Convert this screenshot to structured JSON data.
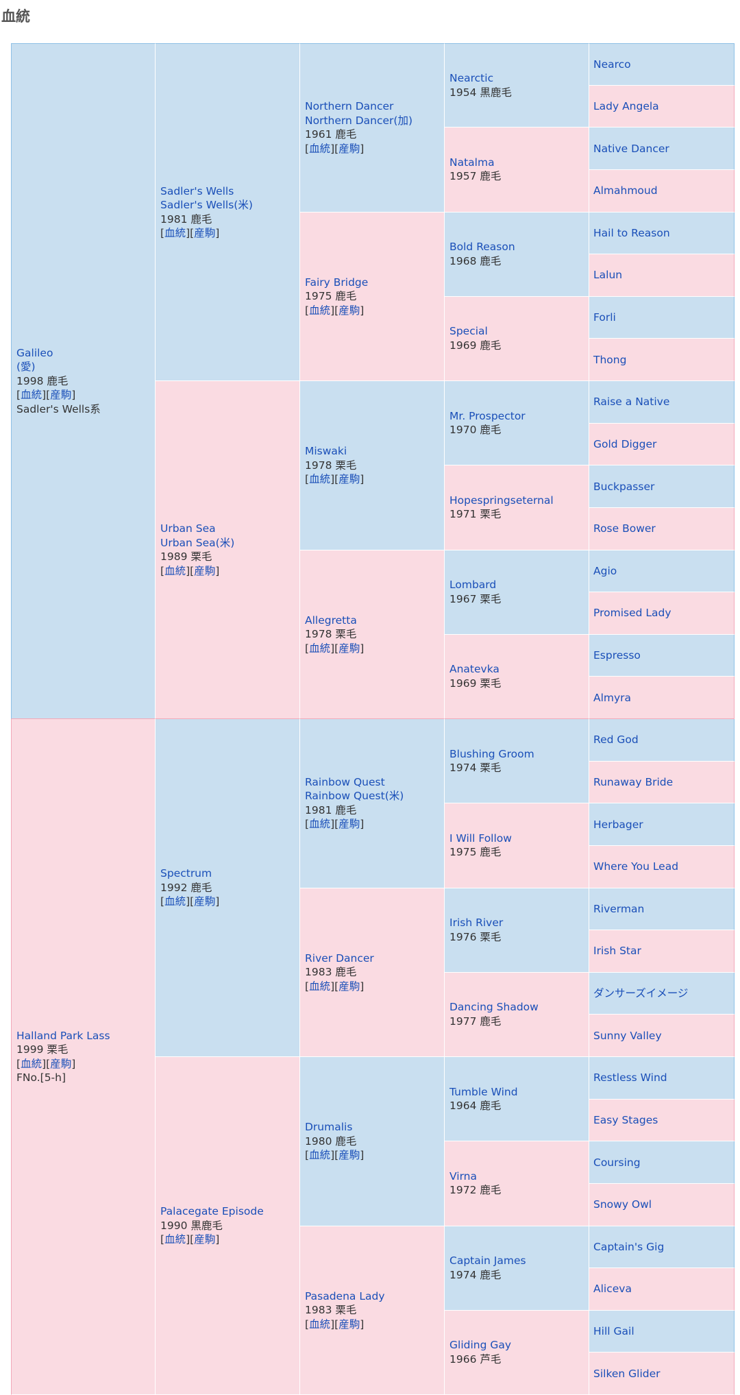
{
  "title": "血統",
  "link_labels": {
    "pedigree": "血統",
    "progeny": "産駒"
  },
  "horse": {
    "sire": {
      "name": "Galileo",
      "alt": "(愛)",
      "info": "1998 鹿毛",
      "line": "Sadler's Wells系"
    },
    "dam": {
      "name": "Halland Park Lass",
      "info": "1999 栗毛",
      "line": "FNo.[5-h]"
    }
  },
  "gen2": [
    {
      "name": "Sadler's Wells",
      "alt": "Sadler's Wells(米)",
      "info": "1981 鹿毛"
    },
    {
      "name": "Urban Sea",
      "alt": "Urban Sea(米)",
      "info": "1989 栗毛"
    },
    {
      "name": "Spectrum",
      "info": "1992 鹿毛"
    },
    {
      "name": "Palacegate Episode",
      "info": "1990 黒鹿毛"
    }
  ],
  "gen3": [
    {
      "name": "Northern Dancer",
      "alt": "Northern Dancer(加)",
      "info": "1961 鹿毛"
    },
    {
      "name": "Fairy Bridge",
      "info": "1975 鹿毛"
    },
    {
      "name": "Miswaki",
      "info": "1978 栗毛"
    },
    {
      "name": "Allegretta",
      "info": "1978 栗毛"
    },
    {
      "name": "Rainbow Quest",
      "alt": "Rainbow Quest(米)",
      "info": "1981 鹿毛"
    },
    {
      "name": "River Dancer",
      "info": "1983 鹿毛"
    },
    {
      "name": "Drumalis",
      "info": "1980 鹿毛"
    },
    {
      "name": "Pasadena Lady",
      "info": "1983 栗毛"
    }
  ],
  "gen4": [
    {
      "name": "Nearctic",
      "info": "1954 黒鹿毛"
    },
    {
      "name": "Natalma",
      "info": "1957 鹿毛"
    },
    {
      "name": "Bold Reason",
      "info": "1968 鹿毛"
    },
    {
      "name": "Special",
      "info": "1969 鹿毛"
    },
    {
      "name": "Mr. Prospector",
      "info": "1970 鹿毛"
    },
    {
      "name": "Hopespringseternal",
      "info": "1971 栗毛"
    },
    {
      "name": "Lombard",
      "info": "1967 栗毛"
    },
    {
      "name": "Anatevka",
      "info": "1969 栗毛"
    },
    {
      "name": "Blushing Groom",
      "info": "1974 栗毛"
    },
    {
      "name": "I Will Follow",
      "info": "1975 鹿毛"
    },
    {
      "name": "Irish River",
      "info": "1976 栗毛"
    },
    {
      "name": "Dancing Shadow",
      "info": "1977 鹿毛"
    },
    {
      "name": "Tumble Wind",
      "info": "1964 鹿毛"
    },
    {
      "name": "Virna",
      "info": "1972 鹿毛"
    },
    {
      "name": "Captain James",
      "info": "1974 鹿毛"
    },
    {
      "name": "Gliding Gay",
      "info": "1966 芦毛"
    }
  ],
  "gen5": [
    "Nearco",
    "Lady Angela",
    "Native Dancer",
    "Almahmoud",
    "Hail to Reason",
    "Lalun",
    "Forli",
    "Thong",
    "Raise a Native",
    "Gold Digger",
    "Buckpasser",
    "Rose Bower",
    "Agio",
    "Promised Lady",
    "Espresso",
    "Almyra",
    "Red God",
    "Runaway Bride",
    "Herbager",
    "Where You Lead",
    "Riverman",
    "Irish Star",
    "ダンサーズイメージ",
    "Sunny Valley",
    "Restless Wind",
    "Easy Stages",
    "Coursing",
    "Snowy Owl",
    "Captain's Gig",
    "Aliceva",
    "Hill Gail",
    "Silken Glider"
  ]
}
